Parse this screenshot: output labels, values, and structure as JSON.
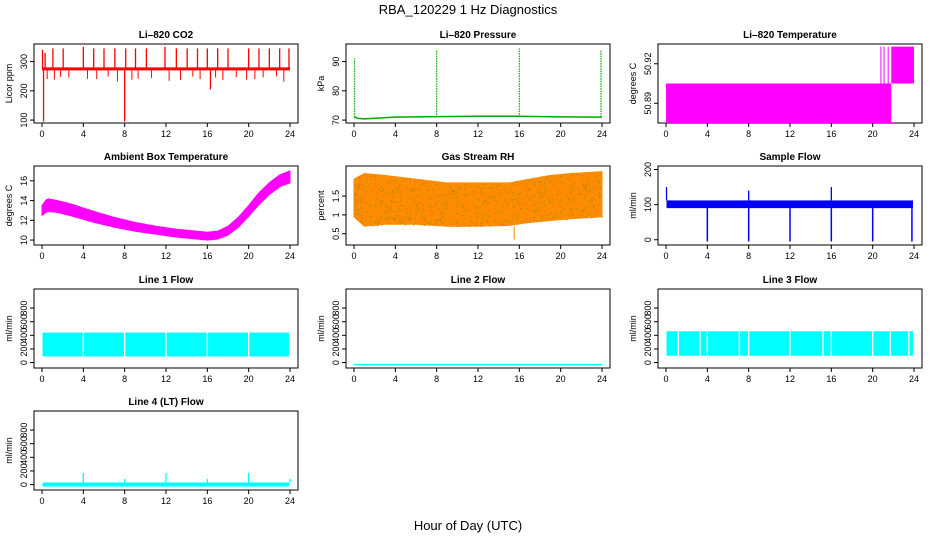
{
  "page": {
    "title": "RBA_120229  1 Hz Diagnostics",
    "xlabel": "Hour of Day (UTC)"
  },
  "chart_data": [
    {
      "type": "line",
      "title": "Li–820 CO2",
      "ylabel": "Licor ppm",
      "color": "#ff0000",
      "xlim": [
        0,
        24
      ],
      "ylim": [
        90,
        360
      ],
      "xticks": [
        0,
        4,
        8,
        12,
        16,
        20,
        24
      ],
      "yticks": [
        100,
        200,
        300
      ],
      "baseline": 275,
      "noise": 8,
      "spikes": [
        {
          "x": 0.05,
          "y": 340
        },
        {
          "x": 0.15,
          "y": 95
        },
        {
          "x": 0.3,
          "y": 330
        },
        {
          "x": 1.05,
          "y": 345
        },
        {
          "x": 2.05,
          "y": 345
        },
        {
          "x": 4.0,
          "y": 350
        },
        {
          "x": 5.0,
          "y": 345
        },
        {
          "x": 6.0,
          "y": 345
        },
        {
          "x": 7.05,
          "y": 345
        },
        {
          "x": 8.0,
          "y": 95
        },
        {
          "x": 8.1,
          "y": 345
        },
        {
          "x": 9.05,
          "y": 345
        },
        {
          "x": 10.1,
          "y": 345
        },
        {
          "x": 11.9,
          "y": 350
        },
        {
          "x": 13.0,
          "y": 345
        },
        {
          "x": 14.05,
          "y": 345
        },
        {
          "x": 15.05,
          "y": 345
        },
        {
          "x": 16.0,
          "y": 345
        },
        {
          "x": 16.3,
          "y": 205
        },
        {
          "x": 17.0,
          "y": 345
        },
        {
          "x": 18.0,
          "y": 345
        },
        {
          "x": 20.0,
          "y": 345
        },
        {
          "x": 21.0,
          "y": 345
        },
        {
          "x": 22.0,
          "y": 345
        },
        {
          "x": 23.0,
          "y": 345
        },
        {
          "x": 23.9,
          "y": 345
        }
      ],
      "dips": [
        0.5,
        1.2,
        1.8,
        2.6,
        4.4,
        5.3,
        6.4,
        7.3,
        8.7,
        9.3,
        10.6,
        12.3,
        13.4,
        14.6,
        15.3,
        16.8,
        17.5,
        18.8,
        19.8,
        20.6,
        21.4,
        22.7,
        23.4
      ]
    },
    {
      "type": "line",
      "title": "Li–820 Pressure",
      "ylabel": "kPa",
      "color": "#00aa00",
      "xlim": [
        0,
        24
      ],
      "ylim": [
        69,
        96
      ],
      "xticks": [
        0,
        4,
        8,
        12,
        16,
        20,
        24
      ],
      "yticks": [
        70,
        80,
        90
      ],
      "series": [
        {
          "x": [
            0,
            0.1,
            0.3,
            1,
            4,
            8,
            12,
            16,
            20,
            23.8,
            24
          ],
          "y": [
            71,
            71,
            70.6,
            70.4,
            71.0,
            71.2,
            71.3,
            71.3,
            71.1,
            71.0,
            71.0
          ]
        }
      ],
      "spikes": [
        {
          "x": 0.05,
          "y": 91
        },
        {
          "x": 8.0,
          "y": 94
        },
        {
          "x": 16.0,
          "y": 94.5
        },
        {
          "x": 23.9,
          "y": 94
        }
      ]
    },
    {
      "type": "area",
      "title": "Li–820 Temperature",
      "ylabel": "degrees C",
      "color": "#ff00ff",
      "xlim": [
        0,
        24
      ],
      "ylim": [
        50.875,
        50.935
      ],
      "xticks": [
        0,
        4,
        8,
        12,
        16,
        20,
        24
      ],
      "yticks": [
        50.89,
        50.92
      ],
      "ytick_labels": [
        "50.89",
        "50.92"
      ],
      "blocks": [
        {
          "x0": 0,
          "x1": 21.8,
          "y0": 50.875,
          "y1": 50.905
        },
        {
          "x0": 21.8,
          "x1": 24,
          "y0": 50.905,
          "y1": 50.933
        }
      ],
      "lines": [
        20.8,
        21.1,
        21.5
      ]
    },
    {
      "type": "area",
      "title": "Ambient Box Temperature",
      "ylabel": "degrees C",
      "color": "#ff00ff",
      "xlim": [
        0,
        24
      ],
      "ylim": [
        9.5,
        17.5
      ],
      "xticks": [
        0,
        4,
        8,
        12,
        16,
        20,
        24
      ],
      "yticks": [
        10,
        12,
        14,
        16
      ],
      "upper": {
        "x": [
          0,
          0.5,
          1.5,
          3,
          5,
          7,
          9,
          11,
          13,
          15,
          16,
          17,
          18,
          19,
          20,
          21,
          22,
          23,
          24
        ],
        "y": [
          13.5,
          14.2,
          14.0,
          13.6,
          12.9,
          12.3,
          11.8,
          11.4,
          11.1,
          10.9,
          10.8,
          10.9,
          11.4,
          12.3,
          13.5,
          14.8,
          15.8,
          16.6,
          17.0
        ]
      },
      "lower": {
        "x": [
          0,
          0.5,
          1.5,
          3,
          5,
          7,
          9,
          11,
          13,
          15,
          16,
          17,
          18,
          19,
          20,
          21,
          22,
          23,
          24
        ],
        "y": [
          12.5,
          12.9,
          12.8,
          12.4,
          11.8,
          11.3,
          10.9,
          10.6,
          10.3,
          10.1,
          10.0,
          10.1,
          10.5,
          11.3,
          12.4,
          13.6,
          14.6,
          15.4,
          15.8
        ]
      }
    },
    {
      "type": "area",
      "title": "Gas Stream RH",
      "ylabel": "percent",
      "color": "#ff8c00",
      "color2": "#b8860b",
      "xlim": [
        0,
        24
      ],
      "ylim": [
        0.2,
        2.3
      ],
      "xticks": [
        0,
        4,
        8,
        12,
        16,
        20,
        24
      ],
      "yticks": [
        0.5,
        1.0,
        1.5
      ],
      "ytick_labels": [
        "0.5",
        "1",
        "1.5"
      ],
      "upper": {
        "x": [
          0,
          1,
          3,
          6,
          9,
          12,
          15,
          17,
          19,
          21,
          24
        ],
        "y": [
          1.95,
          2.1,
          2.05,
          1.95,
          1.85,
          1.85,
          1.85,
          1.95,
          2.05,
          2.1,
          2.15
        ]
      },
      "lower": {
        "x": [
          0,
          1,
          3,
          6,
          9,
          12,
          15,
          17,
          19,
          21,
          24
        ],
        "y": [
          0.95,
          0.7,
          0.75,
          0.75,
          0.7,
          0.7,
          0.72,
          0.8,
          0.85,
          0.9,
          0.95
        ]
      },
      "min_point": {
        "x": 15.5,
        "y": 0.35
      }
    },
    {
      "type": "line",
      "title": "Sample Flow",
      "ylabel": "ml/min",
      "color": "#0000ff",
      "xlim": [
        0,
        24
      ],
      "ylim": [
        -15,
        210
      ],
      "xticks": [
        0,
        4,
        8,
        12,
        16,
        20,
        24
      ],
      "yticks": [
        0,
        100,
        200
      ],
      "band": [
        90,
        112
      ],
      "spikes": [
        {
          "x": 0.05,
          "y": 150
        },
        {
          "x": 8.0,
          "y": 140
        },
        {
          "x": 16.0,
          "y": 150
        }
      ],
      "dips": [
        {
          "x": 4.0,
          "y": -5
        },
        {
          "x": 8.0,
          "y": -5
        },
        {
          "x": 12.0,
          "y": -5
        },
        {
          "x": 16.0,
          "y": -5
        },
        {
          "x": 20.0,
          "y": -5
        },
        {
          "x": 23.8,
          "y": -5
        }
      ]
    },
    {
      "type": "area",
      "title": "Line 1 Flow",
      "ylabel": "ml/min",
      "color": "#00ffff",
      "xlim": [
        0,
        24
      ],
      "ylim": [
        -80,
        1080
      ],
      "xticks": [
        0,
        4,
        8,
        12,
        16,
        20,
        24
      ],
      "yticks": [
        0,
        200,
        400,
        600,
        800
      ],
      "band": [
        90,
        440
      ],
      "gaps": [
        4.0,
        8.0,
        12.0,
        16.0,
        20.0
      ]
    },
    {
      "type": "line",
      "title": "Line 2 Flow",
      "ylabel": "ml/min",
      "color": "#00ffff",
      "xlim": [
        0,
        24
      ],
      "ylim": [
        -80,
        1080
      ],
      "xticks": [
        0,
        4,
        8,
        12,
        16,
        20,
        24
      ],
      "yticks": [
        0,
        200,
        400,
        600,
        800
      ],
      "series": [
        {
          "x": [
            0,
            24
          ],
          "y": [
            -30,
            -30
          ]
        }
      ]
    },
    {
      "type": "area",
      "title": "Line 3 Flow",
      "ylabel": "ml/min",
      "color": "#00ffff",
      "xlim": [
        0,
        24
      ],
      "ylim": [
        -80,
        1080
      ],
      "xticks": [
        0,
        4,
        8,
        12,
        16,
        20,
        24
      ],
      "yticks": [
        0,
        200,
        400,
        600,
        800
      ],
      "band": [
        100,
        460
      ],
      "gaps": [
        1.2,
        3.3,
        4.0,
        7.1,
        8.0,
        12.0,
        15.2,
        16.0,
        20.0,
        21.7,
        23.5
      ]
    },
    {
      "type": "line",
      "title": "Line 4 (LT) Flow",
      "ylabel": "ml/min",
      "color": "#00ffff",
      "xlim": [
        0,
        24
      ],
      "ylim": [
        -80,
        1080
      ],
      "xticks": [
        0,
        4,
        8,
        12,
        16,
        20,
        24
      ],
      "yticks": [
        0,
        200,
        400,
        600,
        800
      ],
      "band": [
        -30,
        30
      ],
      "spikes": [
        {
          "x": 4.0,
          "y": 170
        },
        {
          "x": 8.0,
          "y": 80
        },
        {
          "x": 12.0,
          "y": 170
        },
        {
          "x": 16.0,
          "y": 80
        },
        {
          "x": 20.0,
          "y": 170
        },
        {
          "x": 24.0,
          "y": 80
        }
      ]
    }
  ]
}
